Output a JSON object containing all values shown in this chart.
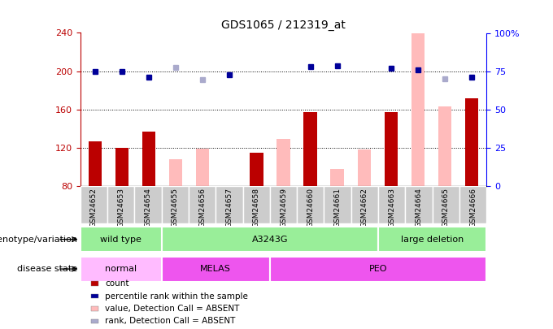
{
  "title": "GDS1065 / 212319_at",
  "samples": [
    "GSM24652",
    "GSM24653",
    "GSM24654",
    "GSM24655",
    "GSM24656",
    "GSM24657",
    "GSM24658",
    "GSM24659",
    "GSM24660",
    "GSM24661",
    "GSM24662",
    "GSM24663",
    "GSM24664",
    "GSM24665",
    "GSM24666"
  ],
  "count_values": [
    127,
    120,
    137,
    null,
    null,
    null,
    115,
    null,
    157,
    null,
    null,
    157,
    null,
    null,
    172
  ],
  "count_absent_values": [
    null,
    null,
    null,
    108,
    119,
    null,
    null,
    129,
    null,
    98,
    118,
    null,
    240,
    163,
    null
  ],
  "percentile_values": [
    200,
    200,
    194,
    null,
    null,
    196,
    null,
    null,
    205,
    206,
    null,
    203,
    201,
    null,
    194
  ],
  "percentile_absent_values": [
    null,
    null,
    null,
    204,
    191,
    null,
    null,
    null,
    null,
    null,
    null,
    null,
    null,
    192,
    null
  ],
  "ylim_left": [
    80,
    240
  ],
  "ylim_right": [
    0,
    100
  ],
  "yticks_left": [
    80,
    120,
    160,
    200,
    240
  ],
  "yticks_right": [
    0,
    25,
    50,
    75,
    100
  ],
  "count_color": "#bb0000",
  "count_absent_color": "#ffbbbb",
  "percentile_color": "#000099",
  "percentile_absent_color": "#aaaacc",
  "geno_groups": [
    {
      "label": "wild type",
      "start": 0,
      "end": 3
    },
    {
      "label": "A3243G",
      "start": 3,
      "end": 11
    },
    {
      "label": "large deletion",
      "start": 11,
      "end": 15
    }
  ],
  "geno_color": "#99ee99",
  "dis_groups": [
    {
      "label": "normal",
      "start": 0,
      "end": 3,
      "color": "#ffbbff"
    },
    {
      "label": "MELAS",
      "start": 3,
      "end": 7,
      "color": "#ee55ee"
    },
    {
      "label": "PEO",
      "start": 7,
      "end": 15,
      "color": "#ee55ee"
    }
  ],
  "genotype_label": "genotype/variation",
  "disease_label": "disease state",
  "legend_items": [
    {
      "label": "count",
      "color": "#bb0000"
    },
    {
      "label": "percentile rank within the sample",
      "color": "#000099"
    },
    {
      "label": "value, Detection Call = ABSENT",
      "color": "#ffbbbb"
    },
    {
      "label": "rank, Detection Call = ABSENT",
      "color": "#aaaacc"
    }
  ],
  "plot_bg": "#ffffff",
  "xtick_bg": "#cccccc"
}
